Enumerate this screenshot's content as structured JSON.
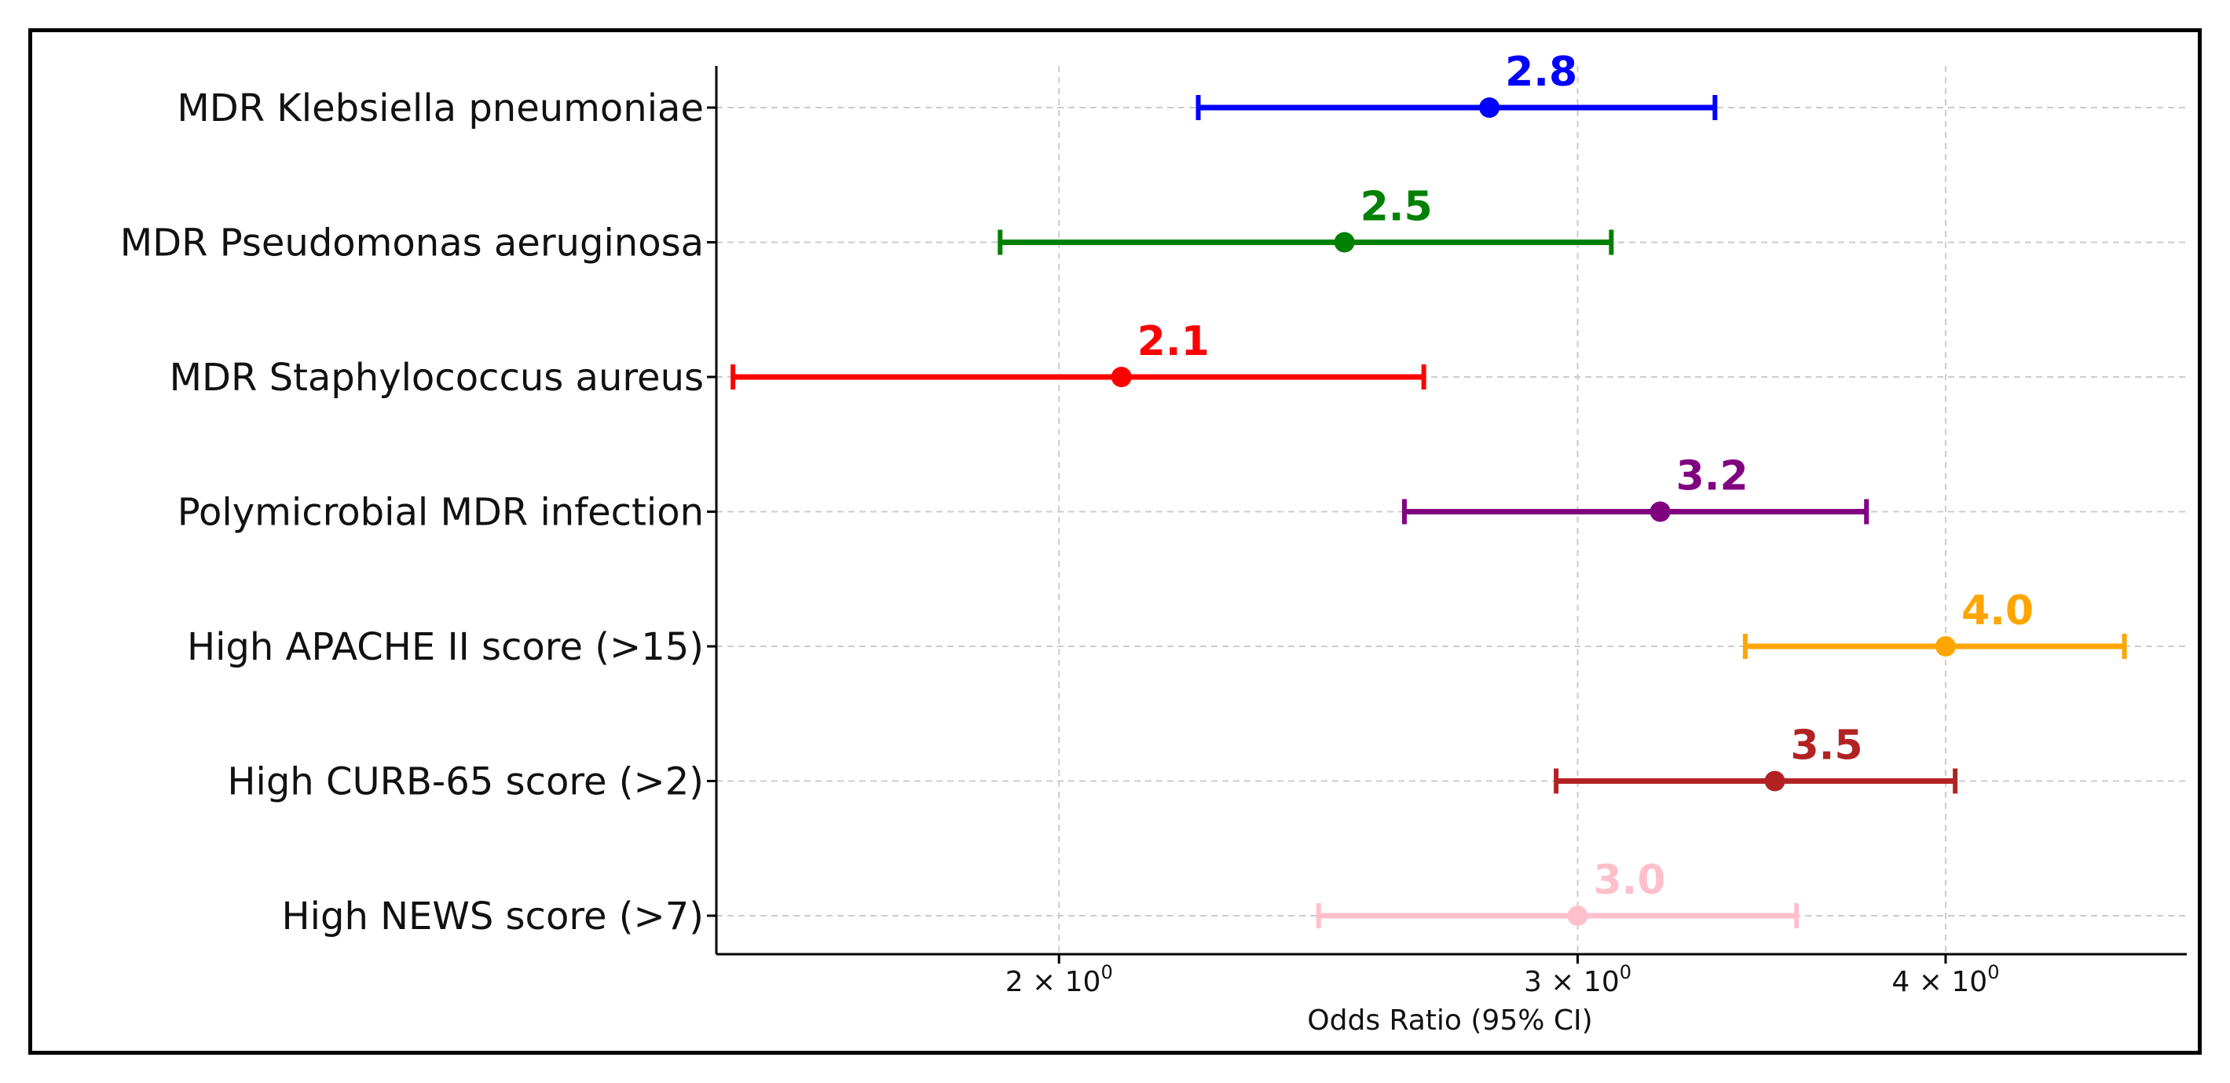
{
  "chart_data": {
    "type": "forest",
    "title": "",
    "xlabel": "Odds Ratio (95% CI)",
    "ylabel": "",
    "xscale": "log",
    "xlim": [
      1.53,
      4.83
    ],
    "grid": true,
    "x_ticks": [
      {
        "value": 2,
        "base": "2 × 10",
        "exp": "0"
      },
      {
        "value": 3,
        "base": "3 × 10",
        "exp": "0"
      },
      {
        "value": 4,
        "base": "4 × 10",
        "exp": "0"
      }
    ],
    "series": [
      {
        "name": "MDR Klebsiella pneumoniae",
        "or": 2.8,
        "ci_low": 2.23,
        "ci_high": 3.34,
        "label": "2.8",
        "color": "#0000ff"
      },
      {
        "name": "MDR Pseudomonas aeruginosa",
        "or": 2.5,
        "ci_low": 1.91,
        "ci_high": 3.08,
        "label": "2.5",
        "color": "#008000"
      },
      {
        "name": "MDR Staphylococcus aureus",
        "or": 2.1,
        "ci_low": 1.55,
        "ci_high": 2.66,
        "label": "2.1",
        "color": "#ff0000"
      },
      {
        "name": "Polymicrobial MDR infection",
        "or": 3.2,
        "ci_low": 2.62,
        "ci_high": 3.76,
        "label": "3.2",
        "color": "#800080"
      },
      {
        "name": "High APACHE II score (>15)",
        "or": 4.0,
        "ci_low": 3.42,
        "ci_high": 4.6,
        "label": "4.0",
        "color": "#ffa500"
      },
      {
        "name": "High CURB-65 score (>2)",
        "or": 3.5,
        "ci_low": 2.95,
        "ci_high": 4.03,
        "label": "3.5",
        "color": "#b22222"
      },
      {
        "name": "High NEWS score (>7)",
        "or": 3.0,
        "ci_low": 2.45,
        "ci_high": 3.56,
        "label": "3.0",
        "color": "#ffc0cb"
      }
    ]
  }
}
